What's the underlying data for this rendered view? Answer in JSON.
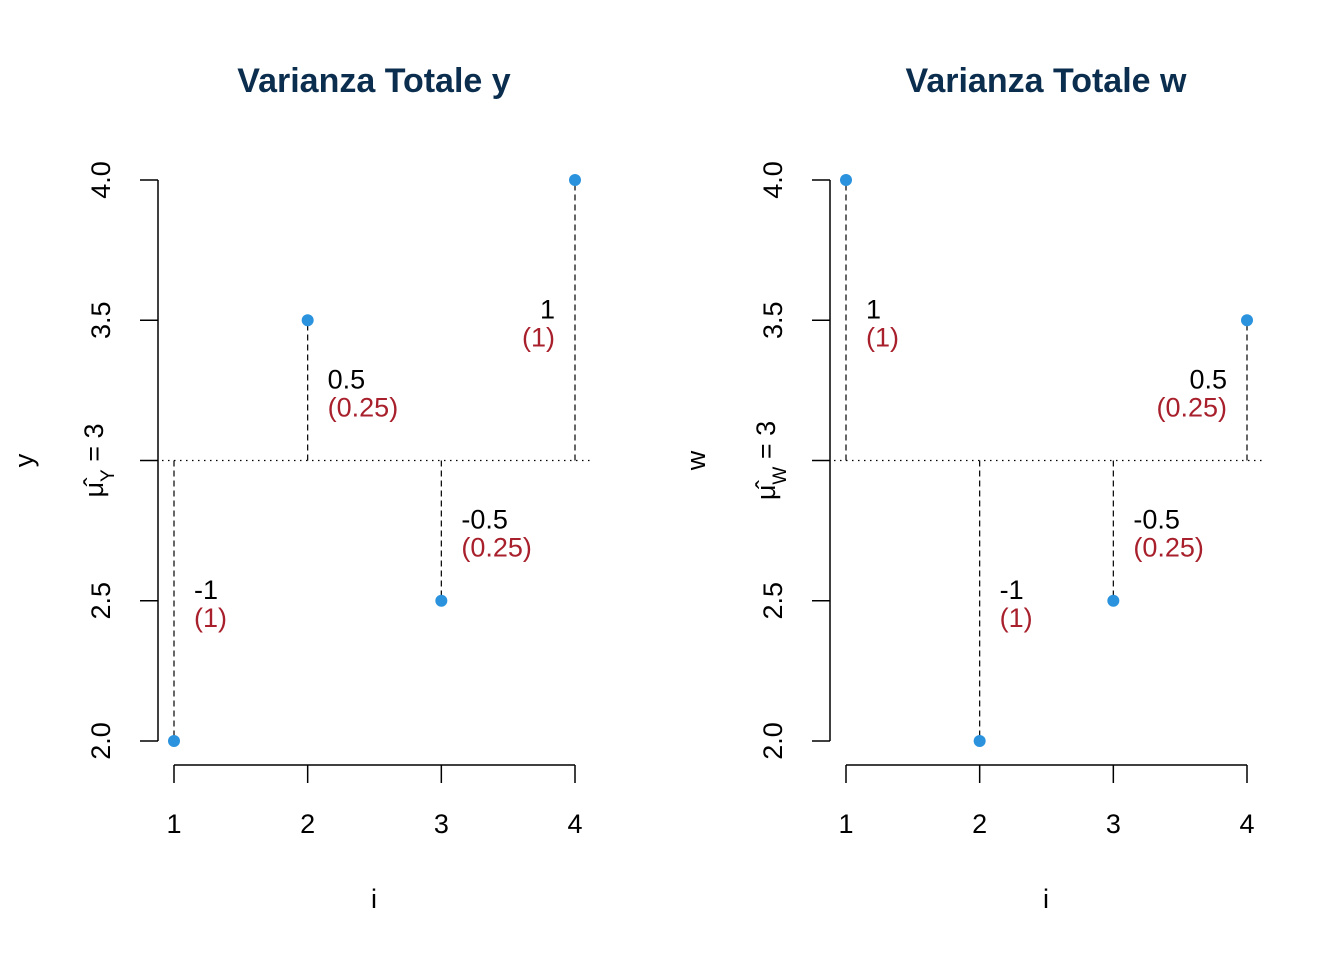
{
  "colors": {
    "title": "#0b2e4f",
    "point": "#2b93dd",
    "squared": "#a8202c",
    "axis": "#000000"
  },
  "chart_data": [
    {
      "type": "scatter",
      "title": "Varianza Totale y",
      "xlabel": "i",
      "ylabel": "y",
      "mean_label_main": "μ̂",
      "mean_label_sub": "Y",
      "mean_label_rest": " = 3",
      "mean": 3,
      "xlim": [
        1,
        4
      ],
      "ylim": [
        2,
        4
      ],
      "x_ticks": [
        "1",
        "2",
        "3",
        "4"
      ],
      "y_ticks": [
        "2.0",
        "2.5",
        "3.0",
        "3.5",
        "4.0"
      ],
      "x": [
        1,
        2,
        3,
        4
      ],
      "y": [
        2,
        3.5,
        2.5,
        4
      ],
      "deviations": [
        "-1",
        "0.5",
        "-0.5",
        "1"
      ],
      "squared": [
        "(1)",
        "(0.25)",
        "(0.25)",
        "(1)"
      ],
      "label_side": [
        "right",
        "right",
        "right",
        "left"
      ]
    },
    {
      "type": "scatter",
      "title": "Varianza Totale w",
      "xlabel": "i",
      "ylabel": "w",
      "mean_label_main": "μ̂",
      "mean_label_sub": "W",
      "mean_label_rest": " = 3",
      "mean": 3,
      "xlim": [
        1,
        4
      ],
      "ylim": [
        2,
        4
      ],
      "x_ticks": [
        "1",
        "2",
        "3",
        "4"
      ],
      "y_ticks": [
        "2.0",
        "2.5",
        "3.0",
        "3.5",
        "4.0"
      ],
      "x": [
        1,
        2,
        3,
        4
      ],
      "y": [
        4,
        2,
        2.5,
        3.5
      ],
      "deviations": [
        "1",
        "-1",
        "-0.5",
        "0.5"
      ],
      "squared": [
        "(1)",
        "(1)",
        "(0.25)",
        "(0.25)"
      ],
      "label_side": [
        "right",
        "right",
        "right",
        "left"
      ]
    }
  ]
}
